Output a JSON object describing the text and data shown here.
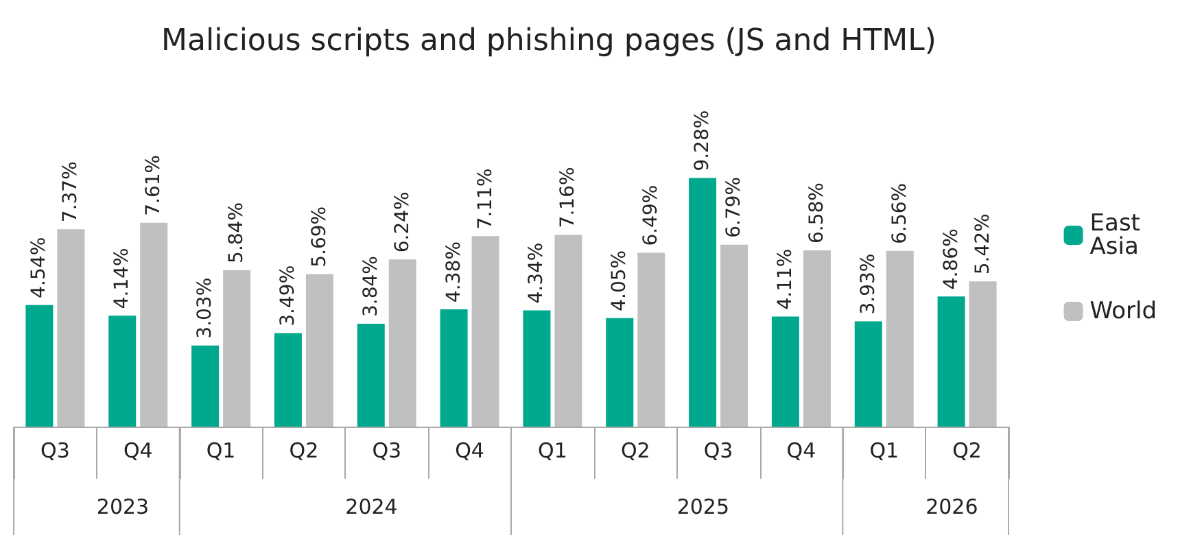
{
  "chart_data": {
    "type": "bar",
    "title": "Malicious scripts and phishing pages (JS and HTML)",
    "categories": [
      "Q3",
      "Q4",
      "Q1",
      "Q2",
      "Q3",
      "Q4",
      "Q1",
      "Q2",
      "Q3",
      "Q4",
      "Q1",
      "Q2"
    ],
    "annotations": [
      "2023",
      "2024",
      "2025",
      "2026"
    ],
    "series": [
      {
        "name": "East Asia",
        "color": "#00a88e",
        "values": [
          4.54,
          4.14,
          3.03,
          3.49,
          3.84,
          4.38,
          4.34,
          4.05,
          9.28,
          4.11,
          3.93,
          4.86
        ],
        "value_labels": [
          "4.54%",
          "4.14%",
          "3.03%",
          "3.49%",
          "3.84%",
          "4.38%",
          "4.34%",
          "4.05%",
          "9.28%",
          "4.11%",
          "3.93%",
          "4.86%"
        ]
      },
      {
        "name": "World",
        "color": "#c0c0c0",
        "values": [
          7.37,
          7.61,
          5.84,
          5.69,
          6.24,
          7.11,
          7.16,
          6.49,
          6.79,
          6.58,
          6.56,
          5.42
        ],
        "value_labels": [
          "7.37%",
          "7.61%",
          "5.84%",
          "5.69%",
          "6.24%",
          "7.11%",
          "7.16%",
          "6.49%",
          "6.79%",
          "6.58%",
          "6.56%",
          "5.42%"
        ]
      }
    ],
    "legend": "right",
    "grid": false
  }
}
